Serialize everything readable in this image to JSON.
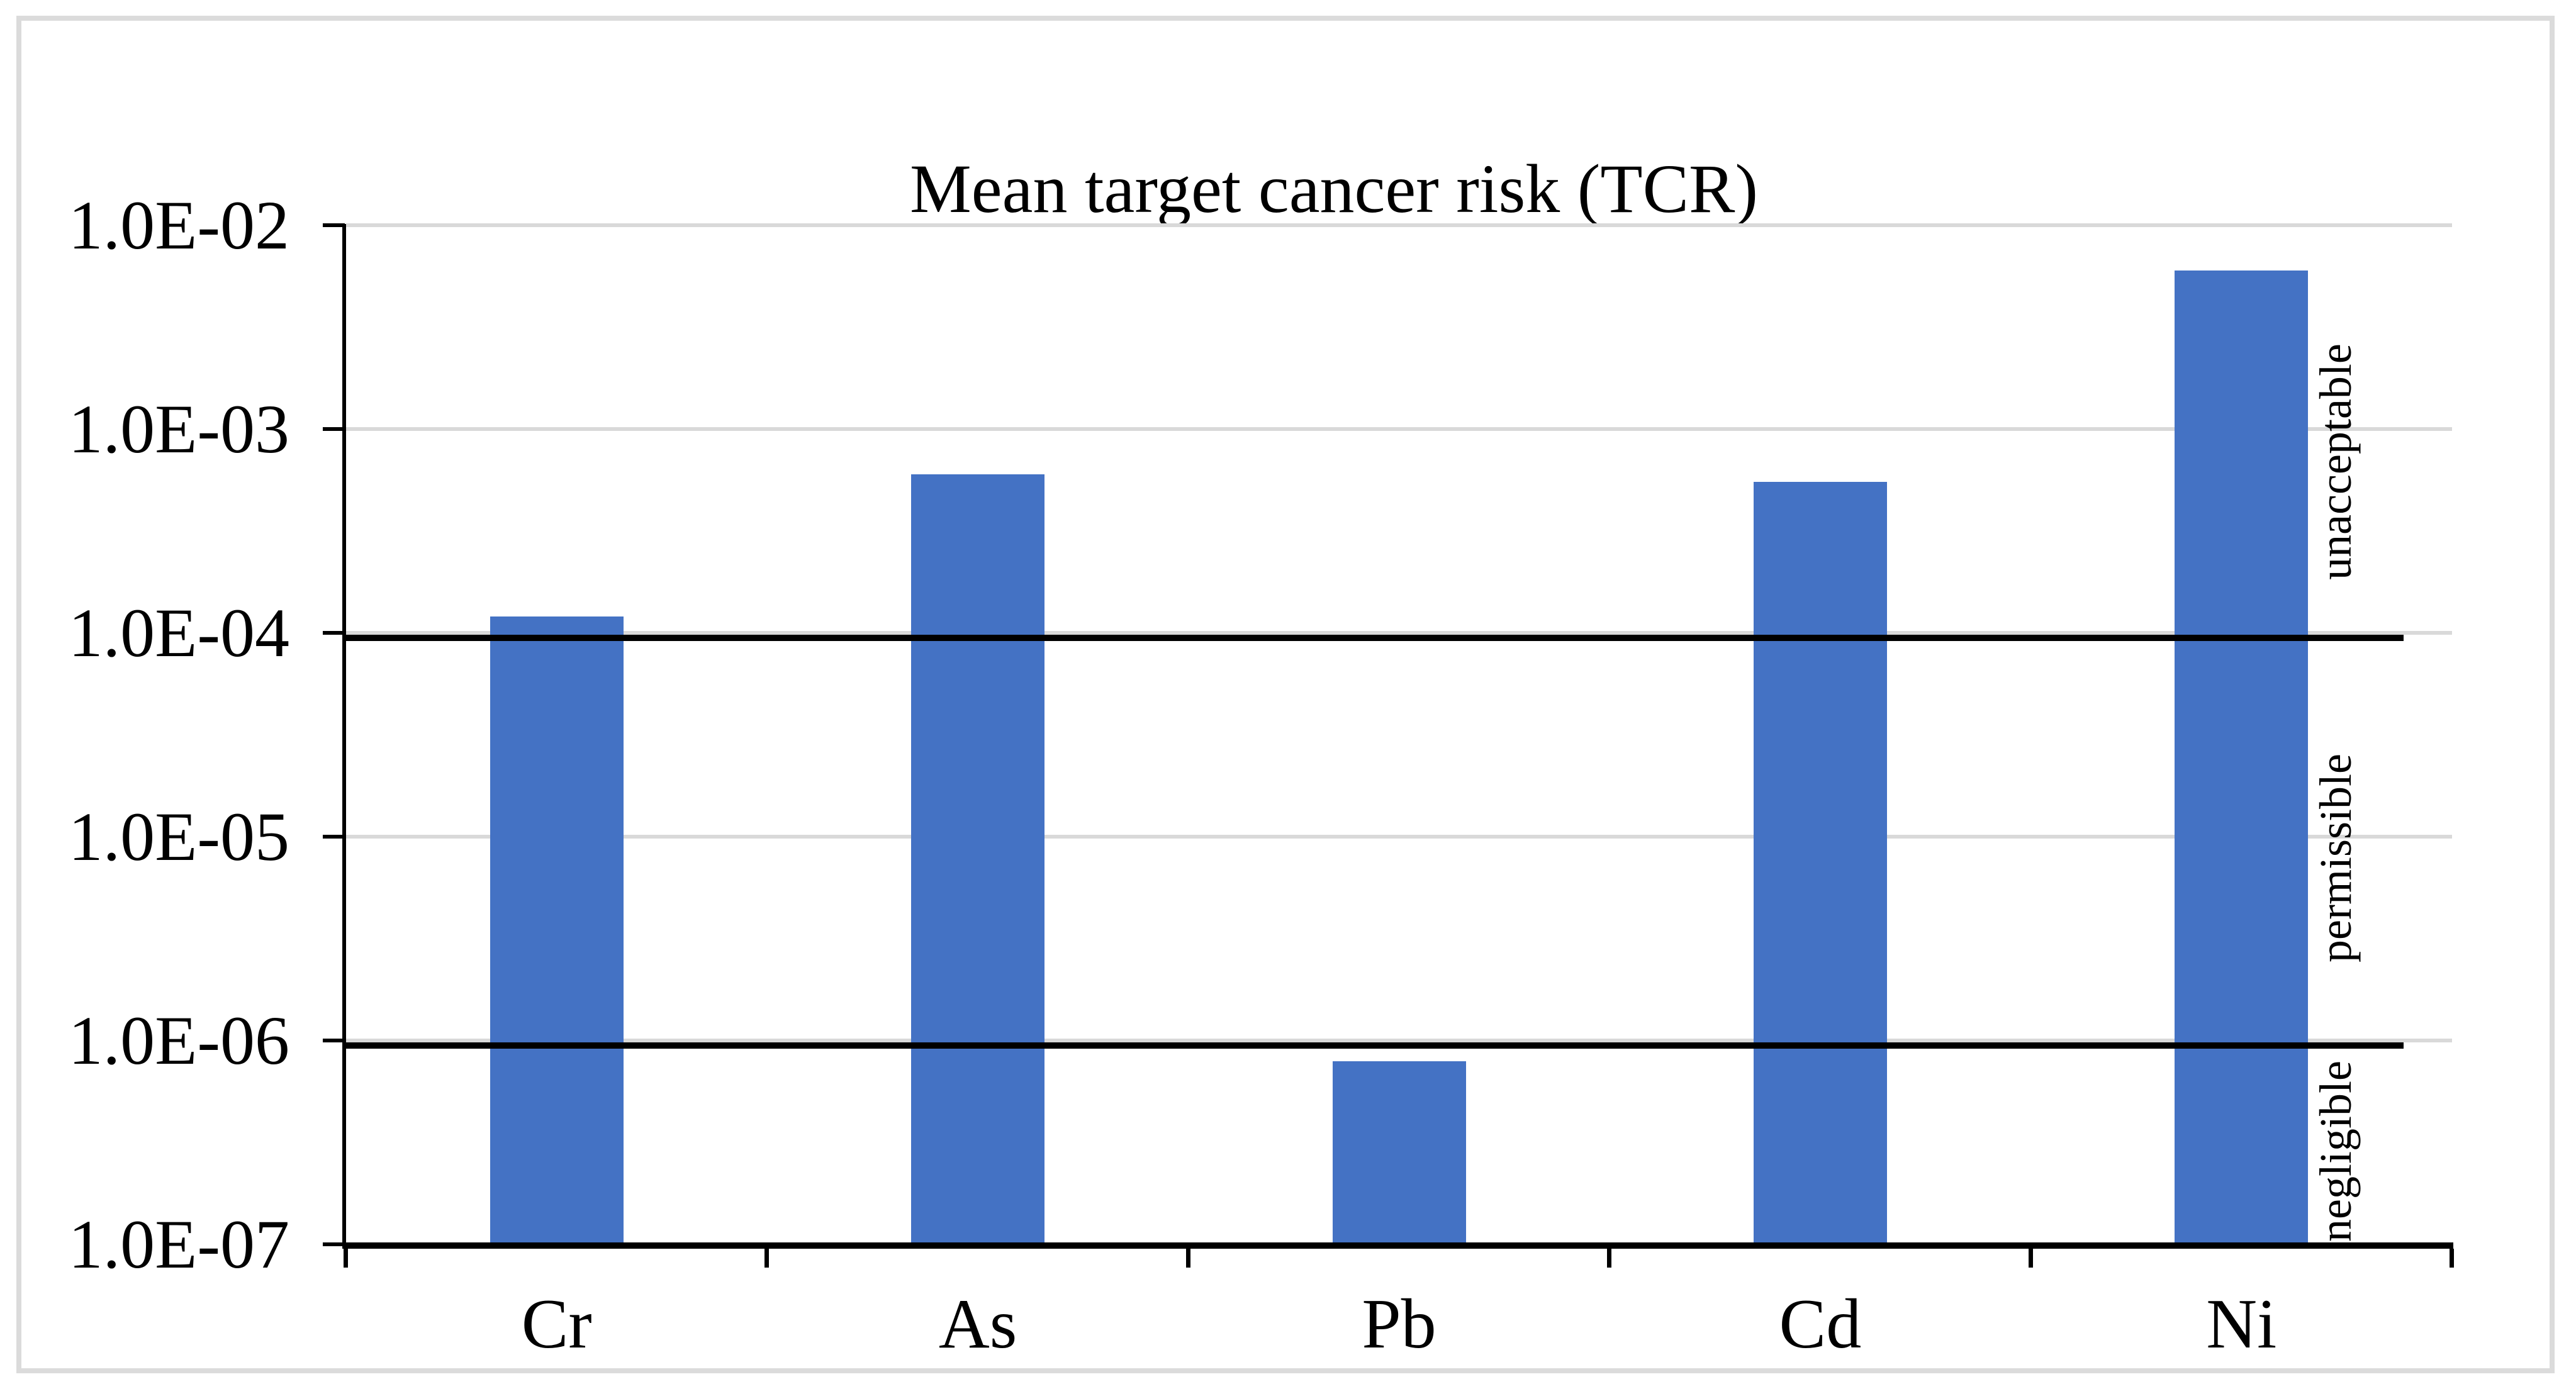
{
  "chart_data": {
    "type": "bar",
    "title": "Mean target cancer risk (TCR)",
    "categories": [
      "Cr",
      "As",
      "Pb",
      "Cd",
      "Ni"
    ],
    "values": [
      0.00012,
      0.0006,
      7.9e-07,
      0.00055,
      0.006
    ],
    "xlabel": "",
    "ylabel": "",
    "yscale": "log",
    "ylim": [
      1e-07,
      0.01
    ],
    "ytick_labels": [
      "1.0E-02",
      "1.0E-03",
      "1.0E-04",
      "1.0E-05",
      "1.0E-06",
      "1.0E-07"
    ],
    "grid": true,
    "legend": false,
    "bar_color": "#4472C4",
    "gridline_color": "#D9D9D9",
    "chart_border_color": "#DBDBDB",
    "axis_color": "#000000",
    "reference_lines": [
      {
        "value": 0.0001
      },
      {
        "value": 1e-06
      }
    ],
    "zone_labels": [
      {
        "text": "unacceptable"
      },
      {
        "text": "permissible"
      },
      {
        "text": "negligible"
      }
    ]
  }
}
